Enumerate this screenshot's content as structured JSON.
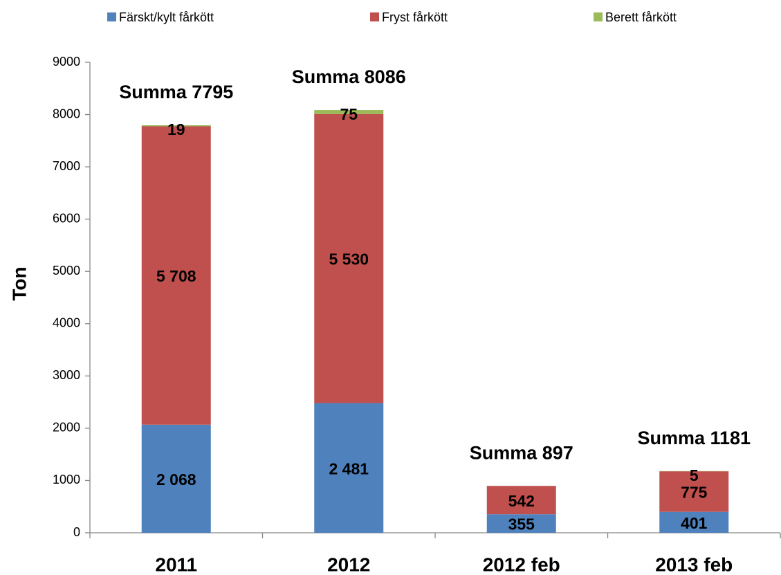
{
  "chart_data": {
    "type": "stacked_bar",
    "categories": [
      "2011",
      "2012",
      "2012 feb",
      "2013 feb"
    ],
    "y_label": "Ton",
    "ylim": [
      0,
      9000
    ],
    "yticks": [
      0,
      1000,
      2000,
      3000,
      4000,
      5000,
      6000,
      7000,
      8000,
      9000
    ],
    "grid": false,
    "legend": "top",
    "series": [
      {
        "name": "Färskt/kylt fårkött",
        "color": "#4f81bd",
        "values": [
          2068,
          2481,
          355,
          401
        ],
        "value_labels": [
          "2 068",
          "2 481",
          "355",
          "401"
        ]
      },
      {
        "name": "Fryst fårkött",
        "color": "#c0504d",
        "values": [
          5708,
          5530,
          542,
          775
        ],
        "value_labels": [
          "5 708",
          "5 530",
          "542",
          "775"
        ]
      },
      {
        "name": "Berett fårkött",
        "color": "#9bbb59",
        "values": [
          19,
          75,
          0,
          5
        ],
        "value_labels": [
          "19",
          "75",
          null,
          "5"
        ]
      }
    ],
    "total_labels": [
      "Summa 7795",
      "Summa 8086",
      "Summa 897",
      "Summa 1181"
    ]
  }
}
